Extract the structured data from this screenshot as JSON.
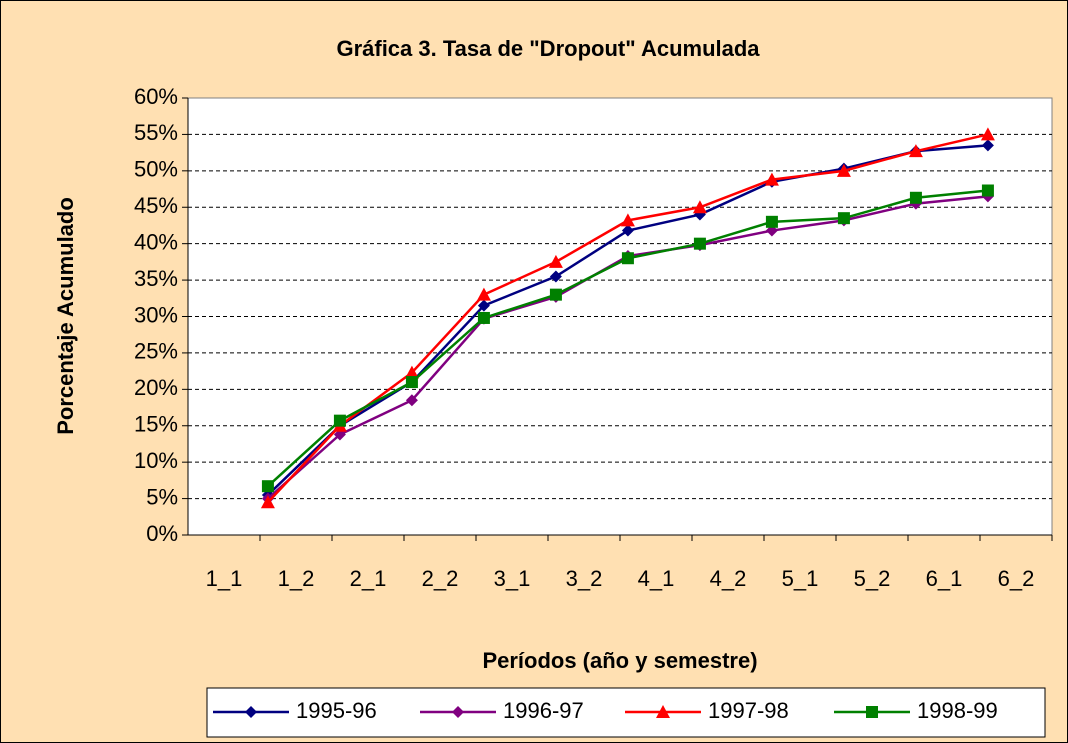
{
  "chart_data": {
    "type": "line",
    "title": "Gráfica 3. Tasa de \"Dropout\" Acumulada",
    "y_label": "Porcentaje Acumulado",
    "x_label": "Períodos (año y semestre)",
    "categories": [
      "1_1",
      "1_2",
      "2_1",
      "2_2",
      "3_1",
      "3_2",
      "4_1",
      "4_2",
      "5_1",
      "5_2",
      "6_1",
      "6_2"
    ],
    "series": [
      {
        "name": "1995-96",
        "color": "#000080",
        "marker": "diamond",
        "values": [
          null,
          5.5,
          15.0,
          21.0,
          31.5,
          35.5,
          41.8,
          44.0,
          48.5,
          50.3,
          52.7,
          53.5
        ]
      },
      {
        "name": "1996-97",
        "color": "#800080",
        "marker": "diamond",
        "values": [
          null,
          5.0,
          13.8,
          18.5,
          29.7,
          32.7,
          38.3,
          39.8,
          41.8,
          43.2,
          45.5,
          46.5
        ]
      },
      {
        "name": "1997-98",
        "color": "#FF0000",
        "marker": "triangle",
        "values": [
          null,
          4.5,
          15.0,
          22.3,
          33.0,
          37.5,
          43.2,
          45.0,
          48.8,
          50.0,
          52.7,
          55.0
        ]
      },
      {
        "name": "1998-99",
        "color": "#008000",
        "marker": "square",
        "values": [
          null,
          6.7,
          15.7,
          21.0,
          29.8,
          33.0,
          38.0,
          40.0,
          43.0,
          43.5,
          46.3,
          47.3
        ]
      }
    ],
    "ylim": [
      0,
      60
    ],
    "yticks": [
      {
        "value": 0,
        "label": "0%"
      },
      {
        "value": 5,
        "label": "5%"
      },
      {
        "value": 10,
        "label": "10%"
      },
      {
        "value": 15,
        "label": "15%"
      },
      {
        "value": 20,
        "label": "20%"
      },
      {
        "value": 25,
        "label": "25%"
      },
      {
        "value": 30,
        "label": "30%"
      },
      {
        "value": 35,
        "label": "35%"
      },
      {
        "value": 40,
        "label": "40%"
      },
      {
        "value": 45,
        "label": "45%"
      },
      {
        "value": 50,
        "label": "50%"
      },
      {
        "value": 55,
        "label": "55%"
      },
      {
        "value": 60,
        "label": "60%"
      }
    ],
    "grid": true,
    "legend": "bottom"
  }
}
